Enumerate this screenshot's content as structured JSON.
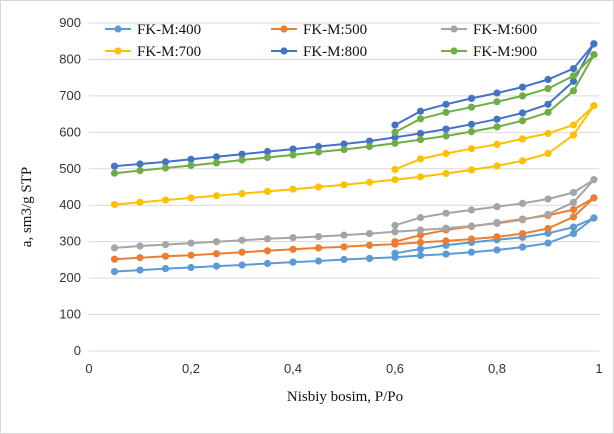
{
  "chart_data": {
    "type": "line",
    "title": "",
    "xlabel": "Nisbiy bosim, P/Po",
    "ylabel": "a, sm3/g STP",
    "xlim": [
      0,
      1
    ],
    "ylim": [
      0,
      900
    ],
    "x_ticks": [
      0,
      0.2,
      0.4,
      0.6,
      0.8,
      1
    ],
    "x_tick_labels": [
      "0",
      "0,2",
      "0,4",
      "0,6",
      "0,8",
      "1"
    ],
    "y_ticks": [
      0,
      100,
      200,
      300,
      400,
      500,
      600,
      700,
      800,
      900
    ],
    "y_tick_labels": [
      "0",
      "100",
      "200",
      "300",
      "400",
      "500",
      "600",
      "700",
      "800",
      "900"
    ],
    "grid": "horizontal",
    "legend_position": "top",
    "series": [
      {
        "name": "FK-M:400",
        "color": "#5b9bd5",
        "adsorption": {
          "x": [
            0.05,
            0.1,
            0.15,
            0.2,
            0.25,
            0.3,
            0.35,
            0.4,
            0.45,
            0.5,
            0.55,
            0.6,
            0.65,
            0.7,
            0.75,
            0.8,
            0.85,
            0.9,
            0.95,
            0.99
          ],
          "y": [
            218,
            222,
            226,
            229,
            233,
            236,
            240,
            244,
            247,
            251,
            254,
            257,
            262,
            266,
            271,
            277,
            285,
            296,
            322,
            365
          ]
        },
        "desorption": {
          "x": [
            0.99,
            0.95,
            0.9,
            0.85,
            0.8,
            0.75,
            0.7,
            0.65,
            0.6
          ],
          "y": [
            365,
            340,
            323,
            312,
            305,
            298,
            290,
            280,
            268
          ]
        }
      },
      {
        "name": "FK-M:500",
        "color": "#ed7d31",
        "adsorption": {
          "x": [
            0.05,
            0.1,
            0.15,
            0.2,
            0.25,
            0.3,
            0.35,
            0.4,
            0.45,
            0.5,
            0.55,
            0.6,
            0.65,
            0.7,
            0.75,
            0.8,
            0.85,
            0.9,
            0.95,
            0.99
          ],
          "y": [
            252,
            256,
            260,
            263,
            267,
            271,
            275,
            279,
            283,
            286,
            290,
            293,
            298,
            302,
            307,
            313,
            322,
            336,
            368,
            420
          ]
        },
        "desorption": {
          "x": [
            0.99,
            0.95,
            0.9,
            0.85,
            0.8,
            0.75,
            0.7,
            0.65,
            0.6
          ],
          "y": [
            420,
            388,
            372,
            362,
            352,
            342,
            332,
            318,
            300
          ]
        }
      },
      {
        "name": "FK-M:600",
        "color": "#a5a5a5",
        "adsorption": {
          "x": [
            0.05,
            0.1,
            0.15,
            0.2,
            0.25,
            0.3,
            0.35,
            0.4,
            0.45,
            0.5,
            0.55,
            0.6,
            0.65,
            0.7,
            0.75,
            0.8,
            0.85,
            0.9,
            0.95,
            0.99
          ],
          "y": [
            283,
            288,
            292,
            296,
            300,
            304,
            308,
            311,
            314,
            318,
            322,
            327,
            332,
            337,
            343,
            350,
            360,
            375,
            408,
            470
          ]
        },
        "desorption": {
          "x": [
            0.99,
            0.95,
            0.9,
            0.85,
            0.8,
            0.75,
            0.7,
            0.65,
            0.6
          ],
          "y": [
            470,
            435,
            417,
            405,
            396,
            387,
            378,
            366,
            345
          ]
        }
      },
      {
        "name": "FK-M:700",
        "color": "#ffc000",
        "adsorption": {
          "x": [
            0.05,
            0.1,
            0.15,
            0.2,
            0.25,
            0.3,
            0.35,
            0.4,
            0.45,
            0.5,
            0.55,
            0.6,
            0.65,
            0.7,
            0.75,
            0.8,
            0.85,
            0.9,
            0.95,
            0.99
          ],
          "y": [
            402,
            408,
            414,
            420,
            426,
            432,
            438,
            444,
            450,
            456,
            463,
            470,
            478,
            487,
            497,
            508,
            522,
            542,
            593,
            673
          ]
        },
        "desorption": {
          "x": [
            0.99,
            0.95,
            0.9,
            0.85,
            0.8,
            0.75,
            0.7,
            0.65,
            0.6
          ],
          "y": [
            673,
            620,
            597,
            582,
            567,
            555,
            542,
            527,
            498
          ]
        }
      },
      {
        "name": "FK-M:800",
        "color": "#4472c4",
        "adsorption": {
          "x": [
            0.05,
            0.1,
            0.15,
            0.2,
            0.25,
            0.3,
            0.35,
            0.4,
            0.45,
            0.5,
            0.55,
            0.6,
            0.65,
            0.7,
            0.75,
            0.8,
            0.85,
            0.9,
            0.95,
            0.99
          ],
          "y": [
            507,
            513,
            519,
            526,
            533,
            540,
            547,
            554,
            561,
            568,
            576,
            586,
            597,
            609,
            622,
            636,
            653,
            677,
            740,
            843
          ]
        },
        "desorption": {
          "x": [
            0.99,
            0.95,
            0.9,
            0.85,
            0.8,
            0.75,
            0.7,
            0.65,
            0.6
          ],
          "y": [
            843,
            775,
            745,
            724,
            708,
            693,
            677,
            658,
            620
          ]
        }
      },
      {
        "name": "FK-M:900",
        "color": "#70ad47",
        "adsorption": {
          "x": [
            0.05,
            0.1,
            0.15,
            0.2,
            0.25,
            0.3,
            0.35,
            0.4,
            0.45,
            0.5,
            0.55,
            0.6,
            0.65,
            0.7,
            0.75,
            0.8,
            0.85,
            0.9,
            0.95,
            0.99
          ],
          "y": [
            488,
            495,
            502,
            509,
            516,
            524,
            531,
            538,
            546,
            553,
            561,
            570,
            580,
            590,
            602,
            615,
            632,
            655,
            714,
            813
          ]
        },
        "desorption": {
          "x": [
            0.99,
            0.95,
            0.9,
            0.85,
            0.8,
            0.75,
            0.7,
            0.65,
            0.6
          ],
          "y": [
            813,
            755,
            720,
            700,
            684,
            669,
            655,
            637,
            600
          ]
        }
      }
    ]
  }
}
